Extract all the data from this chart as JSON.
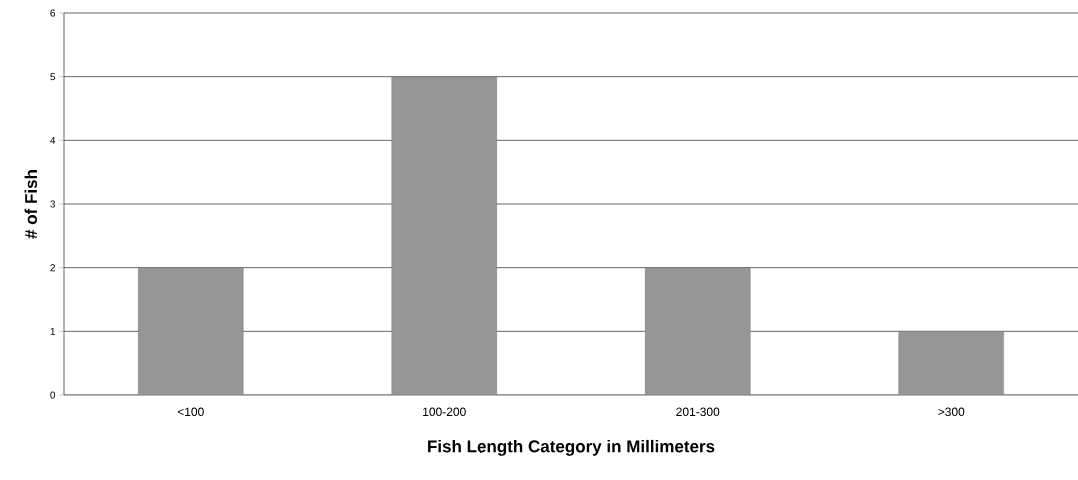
{
  "chart_data": {
    "type": "bar",
    "xlabel": "Fish Length Category in Millimeters",
    "ylabel": "# of Fish",
    "categories": [
      "<100",
      "100-200",
      "201-300",
      ">300"
    ],
    "values": [
      2,
      5,
      2,
      1
    ],
    "color": "#969696",
    "ylim": [
      0,
      6
    ],
    "yticks": [
      0,
      1,
      2,
      3,
      4,
      5,
      6
    ],
    "grid": "y"
  }
}
